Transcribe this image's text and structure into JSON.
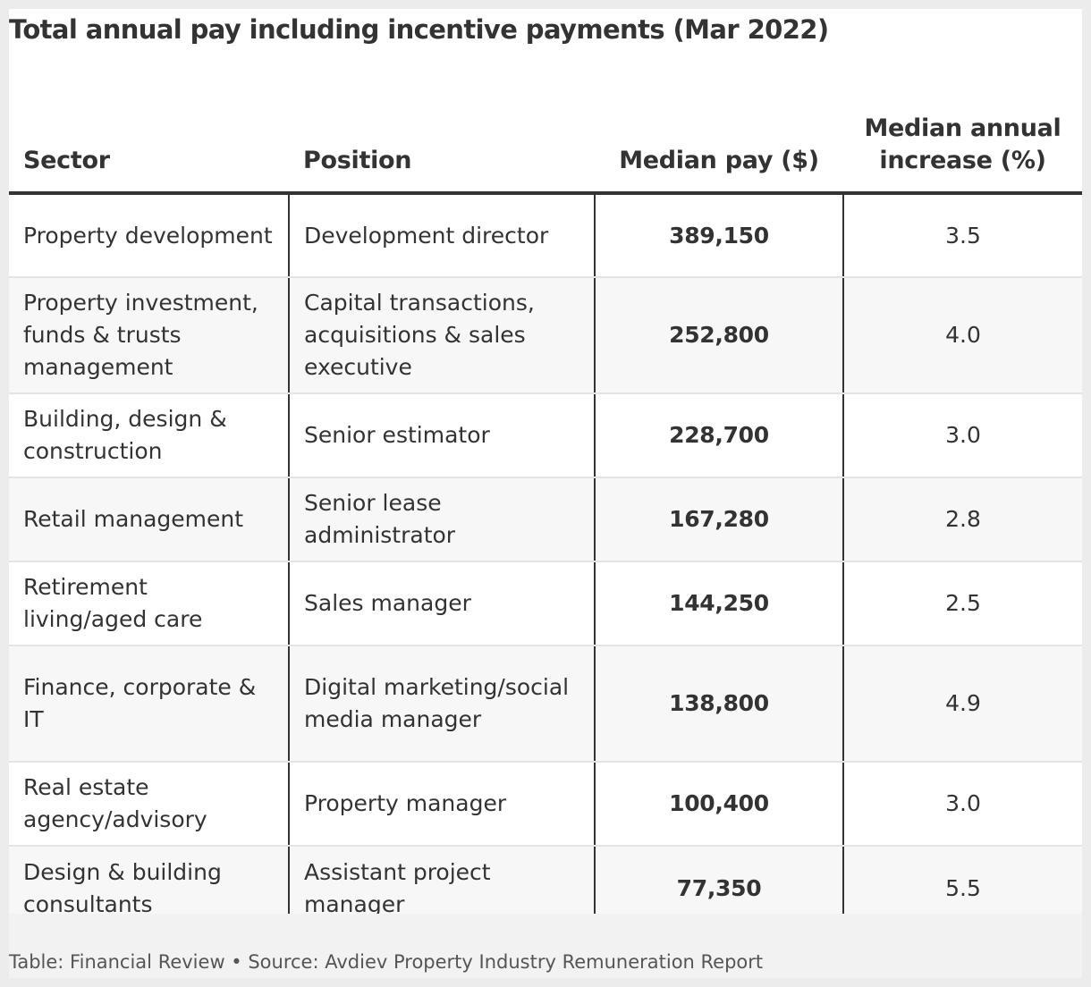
{
  "title": "Total annual pay including incentive payments (Mar 2022)",
  "footer": "Table: Financial Review • Source: Avdiev Property Industry Remuneration Report",
  "chart_data": {
    "type": "table",
    "title": "Total annual pay including incentive payments (Mar 2022)",
    "columns": [
      "Sector",
      "Position",
      "Median pay ($)",
      "Median annual increase (%)"
    ],
    "rows": [
      {
        "sector": "Property development",
        "position": "Development director",
        "median_pay": "389,150",
        "median_increase": "3.5"
      },
      {
        "sector": "Property investment, funds & trusts management",
        "position": "Capital transactions, acquisitions & sales executive",
        "median_pay": "252,800",
        "median_increase": "4.0"
      },
      {
        "sector": "Building, design & construction",
        "position": "Senior estimator",
        "median_pay": "228,700",
        "median_increase": "3.0"
      },
      {
        "sector": "Retail management",
        "position": "Senior lease administrator",
        "median_pay": "167,280",
        "median_increase": "2.8"
      },
      {
        "sector": "Retirement living/aged care",
        "position": "Sales manager",
        "median_pay": "144,250",
        "median_increase": "2.5"
      },
      {
        "sector": "Finance, corporate & IT",
        "position": "Digital marketing/social media manager",
        "median_pay": "138,800",
        "median_increase": "4.9"
      },
      {
        "sector": "Real estate agency/advisory",
        "position": "Property manager",
        "median_pay": "100,400",
        "median_increase": "3.0"
      },
      {
        "sector": "Design & building consultants",
        "position": "Assistant project manager",
        "median_pay": "77,350",
        "median_increase": "5.5"
      }
    ]
  }
}
